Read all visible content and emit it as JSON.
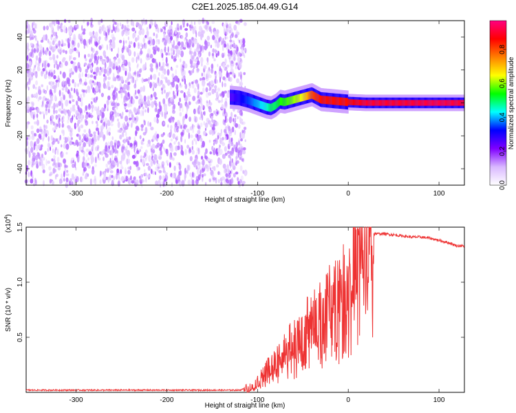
{
  "title": "C2E1.2025.185.04.49.G14",
  "chart_data": [
    {
      "type": "heatmap",
      "xlabel": "Height of straight line (km)",
      "ylabel": "Frequency (Hz)",
      "xlim": [
        -355,
        128
      ],
      "ylim": [
        -50,
        50
      ],
      "x_ticks": [
        -300,
        -200,
        -100,
        0,
        100
      ],
      "y_ticks": [
        -40,
        -20,
        0,
        20,
        40
      ],
      "colorbar": {
        "label": "Normalized spectral amplitude",
        "range": [
          0,
          0.97
        ],
        "ticks": [
          0.0,
          0.2,
          0.4,
          0.6,
          0.8
        ],
        "colormap": [
          "#ffffff",
          "#d9b8ff",
          "#8000ff",
          "#0000ff",
          "#00ffff",
          "#00ff00",
          "#ffff00",
          "#ff8000",
          "#ff0000",
          "#ff0080"
        ]
      },
      "noise_region": {
        "x_range": [
          -355,
          -113
        ],
        "freq_range": [
          -50,
          50
        ],
        "amplitude": 0.05
      },
      "signal_track": [
        {
          "x": -130,
          "freq": 3.5,
          "amplitude": 0.25
        },
        {
          "x": -120,
          "freq": 3.0,
          "amplitude": 0.3
        },
        {
          "x": -110,
          "freq": 1.5,
          "amplitude": 0.35
        },
        {
          "x": -100,
          "freq": -0.5,
          "amplitude": 0.4
        },
        {
          "x": -90,
          "freq": -2.5,
          "amplitude": 0.45
        },
        {
          "x": -85,
          "freq": -3.0,
          "amplitude": 0.5
        },
        {
          "x": -80,
          "freq": -1.5,
          "amplitude": 0.5
        },
        {
          "x": -75,
          "freq": 1.0,
          "amplitude": 0.55
        },
        {
          "x": -70,
          "freq": 0.5,
          "amplitude": 0.55
        },
        {
          "x": -60,
          "freq": 2.0,
          "amplitude": 0.6
        },
        {
          "x": -50,
          "freq": 3.5,
          "amplitude": 0.65
        },
        {
          "x": -40,
          "freq": 5.0,
          "amplitude": 0.8
        },
        {
          "x": -30,
          "freq": 2.0,
          "amplitude": 0.85
        },
        {
          "x": -20,
          "freq": 1.5,
          "amplitude": 0.85
        },
        {
          "x": -10,
          "freq": 1.0,
          "amplitude": 0.85
        },
        {
          "x": 0,
          "freq": 0.5,
          "amplitude": 0.85
        },
        {
          "x": 20,
          "freq": 0.0,
          "amplitude": 0.9
        },
        {
          "x": 60,
          "freq": 0.0,
          "amplitude": 0.9
        },
        {
          "x": 100,
          "freq": 0.0,
          "amplitude": 0.92
        },
        {
          "x": 128,
          "freq": 0.0,
          "amplitude": 0.9
        }
      ]
    },
    {
      "type": "line",
      "xlabel": "Height of straight line (km)",
      "ylabel": "SNR (10 * v/v)",
      "y_multiplier_label": "(x10",
      "y_multiplier_exp": "4",
      "y_multiplier_close": ")",
      "xlim": [
        -355,
        128
      ],
      "ylim": [
        0,
        1.5
      ],
      "x_ticks": [
        -300,
        -200,
        -100,
        0,
        100
      ],
      "y_ticks": [
        0.5,
        1.0,
        1.5
      ],
      "color": "#ee3333",
      "series": [
        {
          "x": [
            -355,
            -300,
            -250,
            -200,
            -150,
            -120,
            -105,
            -95,
            -85,
            -75,
            -65,
            -55,
            -45,
            -35,
            -25,
            -15,
            -5,
            0,
            5,
            10,
            20,
            30,
            40,
            50,
            60,
            70,
            80,
            90,
            100,
            110,
            120,
            128
          ],
          "y": [
            0.02,
            0.02,
            0.02,
            0.02,
            0.02,
            0.02,
            0.05,
            0.15,
            0.25,
            0.35,
            0.45,
            0.5,
            0.65,
            0.7,
            0.8,
            0.95,
            1.0,
            1.1,
            1.2,
            1.35,
            1.42,
            1.44,
            1.44,
            1.43,
            1.42,
            1.41,
            1.41,
            1.4,
            1.38,
            1.36,
            1.33,
            1.33
          ]
        }
      ]
    }
  ]
}
